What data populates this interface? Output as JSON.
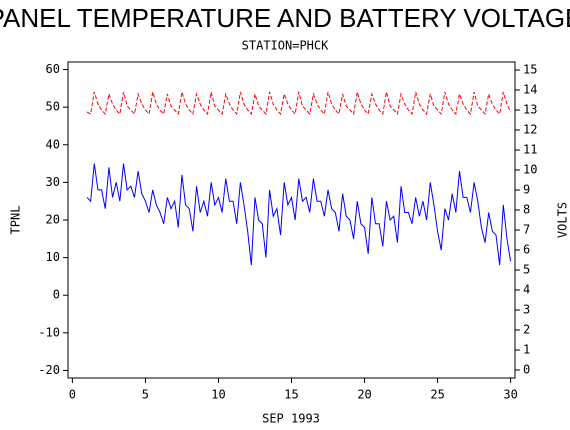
{
  "chart_data": {
    "type": "line",
    "title": "PANEL TEMPERATURE AND BATTERY VOLTAGE",
    "subtitle": "STATION=PHCK",
    "xlabel": "SEP 1993",
    "ylabel": "TPNL",
    "y2label": "VOLTS",
    "xlim": [
      -0.3,
      30.3
    ],
    "xticks": [
      0,
      5,
      10,
      15,
      20,
      25,
      30
    ],
    "ylim": [
      -22,
      62
    ],
    "yticks": [
      -20,
      -10,
      0,
      10,
      20,
      30,
      40,
      50,
      60
    ],
    "y2lim": [
      -0.4,
      15.4
    ],
    "y2ticks": [
      0,
      1,
      2,
      3,
      4,
      5,
      6,
      7,
      8,
      9,
      10,
      11,
      12,
      13,
      14,
      15
    ],
    "x": [
      1,
      1.25,
      1.5,
      1.75,
      2,
      2.25,
      2.5,
      2.75,
      3,
      3.25,
      3.5,
      3.75,
      4,
      4.25,
      4.5,
      4.75,
      5,
      5.25,
      5.5,
      5.75,
      6,
      6.25,
      6.5,
      6.75,
      7,
      7.25,
      7.5,
      7.75,
      8,
      8.25,
      8.5,
      8.75,
      9,
      9.25,
      9.5,
      9.75,
      10,
      10.25,
      10.5,
      10.75,
      11,
      11.25,
      11.5,
      11.75,
      12,
      12.25,
      12.5,
      12.75,
      13,
      13.25,
      13.5,
      13.75,
      14,
      14.25,
      14.5,
      14.75,
      15,
      15.25,
      15.5,
      15.75,
      16,
      16.25,
      16.5,
      16.75,
      17,
      17.25,
      17.5,
      17.75,
      18,
      18.25,
      18.5,
      18.75,
      19,
      19.25,
      19.5,
      19.75,
      20,
      20.25,
      20.5,
      20.75,
      21,
      21.25,
      21.5,
      21.75,
      22,
      22.25,
      22.5,
      22.75,
      23,
      23.25,
      23.5,
      23.75,
      24,
      24.25,
      24.5,
      24.75,
      25,
      25.25,
      25.5,
      25.75,
      26,
      26.25,
      26.5,
      26.75,
      27,
      27.25,
      27.5,
      27.75,
      28,
      28.25,
      28.5,
      28.75,
      29,
      29.25,
      29.5,
      29.75,
      30
    ],
    "series": [
      {
        "name": "TPNL",
        "color": "#0000ff",
        "axis": "y",
        "values": [
          26,
          25,
          35,
          28,
          28,
          23,
          34,
          26,
          30,
          25,
          35,
          28,
          29,
          26,
          33,
          27,
          25,
          22,
          28,
          24,
          22,
          19,
          26,
          23,
          25,
          18,
          32,
          24,
          23,
          17,
          29,
          22,
          25,
          21,
          30,
          24,
          26,
          22,
          31,
          25,
          25,
          19,
          30,
          24,
          17,
          8,
          26,
          20,
          19,
          10,
          28,
          21,
          23,
          16,
          30,
          24,
          26,
          20,
          31,
          25,
          26,
          22,
          31,
          25,
          25,
          21,
          28,
          23,
          22,
          17,
          27,
          21,
          20,
          15,
          25,
          19,
          18,
          11,
          26,
          19,
          19,
          13,
          25,
          20,
          21,
          14,
          29,
          22,
          22,
          19,
          26,
          21,
          25,
          20,
          30,
          24,
          17,
          12,
          23,
          20,
          27,
          22,
          33,
          26,
          26,
          22,
          30,
          25,
          18,
          14,
          22,
          17,
          16,
          8,
          24,
          15,
          9
        ]
      },
      {
        "name": "VOLTS",
        "color": "#ff0000",
        "axis": "y2",
        "dashed": true,
        "values": [
          12.9,
          12.8,
          13.9,
          13.3,
          13.0,
          12.8,
          13.8,
          13.3,
          13.0,
          12.8,
          13.9,
          13.2,
          13.0,
          12.8,
          13.8,
          13.3,
          13.0,
          12.8,
          13.9,
          13.3,
          13.0,
          12.8,
          13.8,
          13.2,
          13.0,
          12.8,
          13.9,
          13.3,
          13.0,
          12.8,
          13.8,
          13.3,
          13.0,
          12.8,
          13.9,
          13.2,
          13.0,
          12.8,
          13.8,
          13.3,
          13.0,
          12.8,
          13.9,
          13.3,
          13.0,
          12.8,
          13.8,
          13.2,
          13.0,
          12.8,
          13.9,
          13.3,
          13.0,
          12.8,
          13.8,
          13.3,
          13.0,
          12.8,
          13.9,
          13.2,
          13.0,
          12.8,
          13.8,
          13.3,
          13.0,
          12.8,
          13.9,
          13.3,
          13.0,
          12.8,
          13.8,
          13.2,
          13.0,
          12.8,
          13.9,
          13.3,
          13.0,
          12.8,
          13.8,
          13.3,
          13.0,
          12.8,
          13.9,
          13.2,
          13.0,
          12.8,
          13.8,
          13.3,
          13.0,
          12.8,
          13.9,
          13.3,
          13.0,
          12.8,
          13.8,
          13.2,
          13.0,
          12.8,
          13.9,
          13.3,
          13.0,
          12.8,
          13.8,
          13.3,
          13.0,
          12.8,
          13.9,
          13.2,
          13.0,
          12.8,
          13.8,
          13.3,
          13.0,
          12.8,
          13.9,
          13.3,
          12.9
        ]
      }
    ]
  }
}
